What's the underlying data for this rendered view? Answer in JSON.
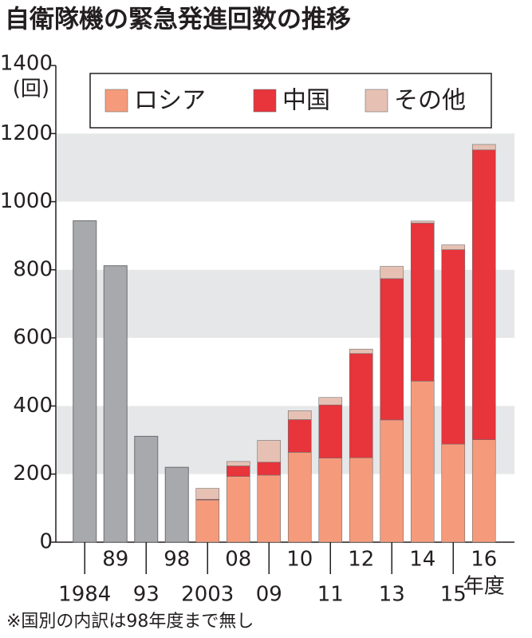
{
  "chart_data": {
    "type": "stacked-bar",
    "title": "自衛隊機の緊急発進回数の推移",
    "y_unit": "(回)",
    "x_suffix": "年度",
    "note": "※国別の内訳は98年度まで無し",
    "categories": [
      "1984",
      "89",
      "93",
      "98",
      "2003",
      "08",
      "09",
      "10",
      "11",
      "12",
      "13",
      "14",
      "15",
      "16"
    ],
    "series": [
      {
        "name": "ロシア",
        "color": "#f59b7c",
        "values": [
          null,
          null,
          null,
          null,
          124,
          193,
          197,
          264,
          247,
          248,
          359,
          473,
          288,
          301
        ]
      },
      {
        "name": "中国",
        "color": "#e8343b",
        "values": [
          null,
          null,
          null,
          null,
          2,
          31,
          38,
          96,
          156,
          306,
          415,
          464,
          571,
          851
        ]
      },
      {
        "name": "その他",
        "color": "#e6c1b3",
        "values": [
          null,
          null,
          null,
          null,
          32,
          13,
          64,
          26,
          22,
          13,
          36,
          6,
          14,
          16
        ]
      }
    ],
    "total_only": {
      "color": "#a7a9ac",
      "values": [
        944,
        812,
        311,
        220,
        null,
        null,
        null,
        null,
        null,
        null,
        null,
        null,
        null,
        null
      ]
    },
    "ylim": [
      0,
      1400
    ],
    "yticks": [
      0,
      200,
      400,
      600,
      800,
      1000,
      1200,
      1400
    ],
    "grid": "bands",
    "band_color": "#e6e7e8"
  }
}
